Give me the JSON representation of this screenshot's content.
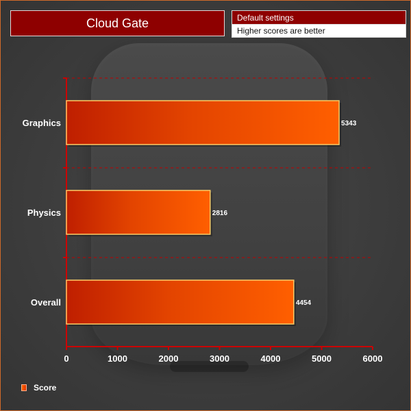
{
  "header": {
    "title": "Cloud Gate",
    "info_top": "Default settings",
    "info_bottom": "Higher scores are better"
  },
  "legend": {
    "label": "Score"
  },
  "chart_data": {
    "type": "bar",
    "orientation": "horizontal",
    "categories": [
      "Graphics",
      "Physics",
      "Overall"
    ],
    "series": [
      {
        "name": "Score",
        "values": [
          5343,
          2816,
          4454
        ],
        "color": "#ff5500"
      }
    ],
    "data_labels": [
      "5343",
      "2816",
      "4454"
    ],
    "xlabel": "",
    "ylabel": "",
    "xlim": [
      0,
      6000
    ],
    "xticks": [
      0,
      1000,
      2000,
      3000,
      4000,
      5000,
      6000
    ],
    "grid": "dashed-horizontal",
    "legend_position": "bottom-left",
    "colors": {
      "axis": "#cc0000",
      "grid": "#c00000",
      "bar_left": "#bf1f00",
      "bar_right": "#ff5f00",
      "bar_border": "#ffcc66",
      "text": "#ffffff"
    }
  }
}
